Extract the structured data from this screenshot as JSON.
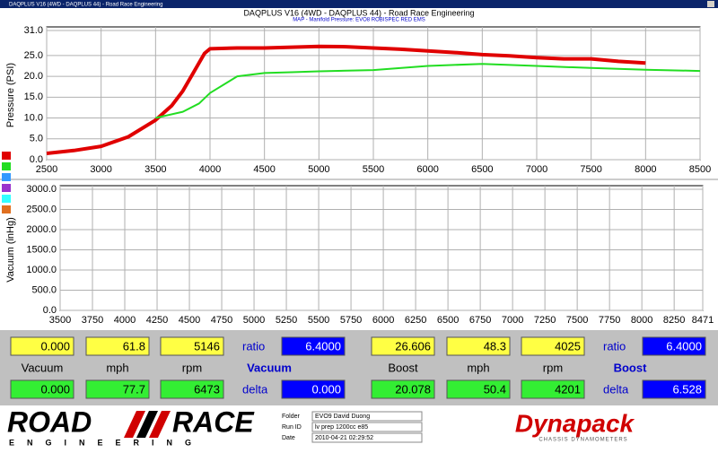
{
  "window_title": "DAQPLUS V16 (4WD - DAQPLUS 44) - Road Race Engineering",
  "header": {
    "title": "DAQPLUS V16 (4WD - DAQPLUS 44) - Road Race Engineering",
    "subtitle": "MAP - Manifold Pressure: EVO8 ROBISPEC RED EMS"
  },
  "chart_data": [
    {
      "type": "line",
      "y_label": "Pressure (PSI)",
      "grid": true,
      "xlim": [
        2500,
        8500
      ],
      "xticks": [
        2500,
        3000,
        3500,
        4000,
        4500,
        5000,
        5500,
        6000,
        6500,
        7000,
        7500,
        8000,
        8500
      ],
      "ylim": [
        0,
        31
      ],
      "yticks": [
        {
          "value": 0,
          "label": "0.0"
        },
        {
          "value": 5,
          "label": "5.0"
        },
        {
          "value": 10,
          "label": "10.0"
        },
        {
          "value": 15,
          "label": "15.0"
        },
        {
          "value": 20,
          "label": "20.0"
        },
        {
          "value": 25,
          "label": "25.0"
        },
        {
          "value": 31,
          "label": "31.0"
        }
      ],
      "series": [
        {
          "color": "#e00000",
          "x": [
            2500,
            2750,
            3000,
            3250,
            3500,
            3650,
            3750,
            3850,
            3950,
            4000,
            4250,
            4500,
            4750,
            5000,
            5250,
            5500,
            5750,
            6000,
            6250,
            6500,
            6750,
            7000,
            7250,
            7500,
            7750,
            8000
          ],
          "values": [
            1.5,
            2.2,
            3.2,
            5.5,
            9.5,
            13,
            16.5,
            21,
            25.5,
            26.6,
            26.8,
            26.8,
            27,
            27.2,
            27.1,
            26.8,
            26.5,
            26.1,
            25.7,
            25.2,
            24.9,
            24.5,
            24.2,
            24.2,
            23.6,
            23.2
          ]
        },
        {
          "color": "#22dd22",
          "x": [
            3500,
            3750,
            3900,
            4000,
            4250,
            4500,
            4750,
            5000,
            5500,
            6000,
            6500,
            7000,
            7500,
            8000,
            8500
          ],
          "values": [
            10,
            11.5,
            13.5,
            16,
            20,
            20.8,
            21,
            21.2,
            21.5,
            22.5,
            23,
            22.5,
            22,
            21.6,
            21.3
          ]
        }
      ]
    },
    {
      "type": "line",
      "y_label": "Vacuum (inHg)",
      "grid": true,
      "xlim": [
        3500,
        8471
      ],
      "xticks": [
        3500,
        3750,
        4000,
        4250,
        4500,
        4750,
        5000,
        5250,
        5500,
        5750,
        6000,
        6250,
        6500,
        6750,
        7000,
        7250,
        7500,
        7750,
        8000,
        8250,
        8471
      ],
      "ylim": [
        0,
        3000
      ],
      "yticks": [
        {
          "value": 0,
          "label": "0.0"
        },
        {
          "value": 500,
          "label": "500.0"
        },
        {
          "value": 1000,
          "label": "1000.0"
        },
        {
          "value": 1500,
          "label": "1500.0"
        },
        {
          "value": 2000,
          "label": "2000.0"
        },
        {
          "value": 2500,
          "label": "2500.0"
        },
        {
          "value": 3000,
          "label": "3000.0"
        }
      ],
      "series": []
    }
  ],
  "readouts": [
    {
      "values_top": [
        "0.000",
        "61.8",
        "5146"
      ],
      "ratio_label": "ratio",
      "ratio": "6.4000",
      "labels": [
        "Vacuum",
        "mph",
        "rpm"
      ],
      "mode": "Vacuum",
      "values_bottom": [
        "0.000",
        "77.7",
        "6473"
      ],
      "delta_label": "delta",
      "delta": "0.000"
    },
    {
      "values_top": [
        "26.606",
        "48.3",
        "4025"
      ],
      "ratio_label": "ratio",
      "ratio": "6.4000",
      "labels": [
        "Boost",
        "mph",
        "rpm"
      ],
      "mode": "Boost",
      "values_bottom": [
        "20.078",
        "50.4",
        "4201"
      ],
      "delta_label": "delta",
      "delta": "6.528"
    }
  ],
  "footer": {
    "logo_left": [
      "ROAD",
      "RACE"
    ],
    "logo_left_sub": "ENGINEERING",
    "fields": [
      {
        "label": "Folder",
        "value": "EVO9 David Duong"
      },
      {
        "label": "Run ID",
        "value": "lv prep 1200cc e85"
      },
      {
        "label": "Date",
        "value": "2010-04-21 02:29:52"
      }
    ],
    "logo_right": "Dynapack",
    "logo_right_sub": "CHASSIS DYNAMOMETERS"
  }
}
